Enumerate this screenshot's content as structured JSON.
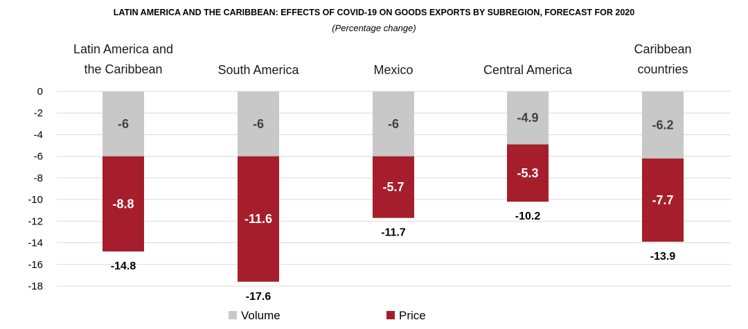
{
  "chart_data": {
    "type": "bar",
    "title": "LATIN AMERICA AND THE CARIBBEAN: EFFECTS OF COVID-19 ON GOODS EXPORTS BY SUBREGION, FORECAST FOR 2020",
    "subtitle": "(Percentage change)",
    "stacked": true,
    "categories": [
      [
        "Latin America and",
        "the Caribbean"
      ],
      [
        "South America"
      ],
      [
        "Mexico"
      ],
      [
        "Central America"
      ],
      [
        "Caribbean",
        "countries"
      ]
    ],
    "series": [
      {
        "name": "Volume",
        "color": "#c8c8c8",
        "label_color": "#404040",
        "values": [
          -6,
          -6,
          -6,
          -4.9,
          -6.2
        ],
        "labels": [
          "-6",
          "-6",
          "-6",
          "-4.9",
          "-6.2"
        ]
      },
      {
        "name": "Price",
        "color": "#a61e2b",
        "label_color": "#ffffff",
        "values": [
          -8.8,
          -11.6,
          -5.7,
          -5.3,
          -7.7
        ],
        "labels": [
          "-8.8",
          "-11.6",
          "-5.7",
          "-5.3",
          "-7.7"
        ]
      }
    ],
    "totals": [
      -14.8,
      -17.6,
      -11.7,
      -10.2,
      -13.9
    ],
    "total_labels": [
      "-14.8",
      "-17.6",
      "-11.7",
      "-10.2",
      "-13.9"
    ],
    "ylim": [
      -18,
      0
    ],
    "yticks": [
      0,
      -2,
      -4,
      -6,
      -8,
      -10,
      -12,
      -14,
      -16,
      -18
    ],
    "grid": true,
    "gridline_color": "#d9d9d9",
    "legend_position": "bottom"
  }
}
